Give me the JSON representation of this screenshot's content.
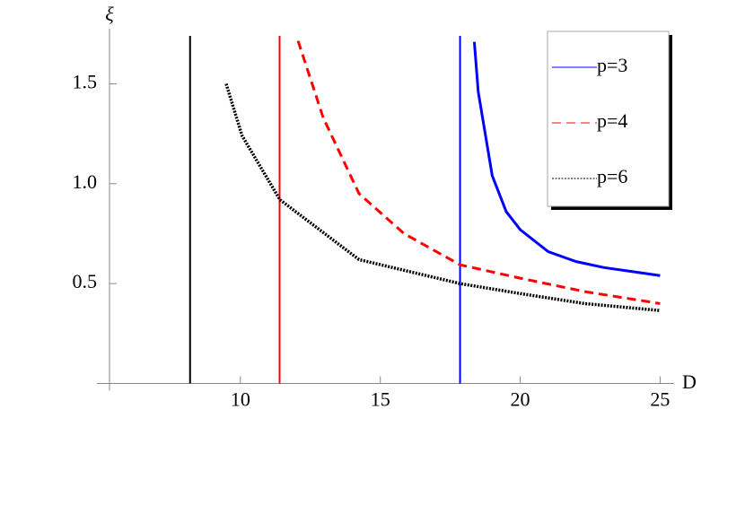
{
  "chart_data": {
    "type": "line",
    "xlabel": "D",
    "ylabel": "ξ",
    "xlim": [
      5,
      25.5
    ],
    "ylim": [
      0,
      1.74
    ],
    "xticks": [
      10,
      15,
      20,
      25
    ],
    "yticks": [
      0.5,
      {
        "value": 1.0,
        "label": "1.0"
      },
      1.5
    ],
    "vlines": [
      {
        "x": 8.2,
        "color": "#000000"
      },
      {
        "x": 11.4,
        "color": "#ff0000"
      },
      {
        "x": 17.85,
        "color": "#0000ff"
      }
    ],
    "series": [
      {
        "name": "p=3",
        "color": "#0000ff",
        "style": "solid",
        "x": [
          18.36,
          18.5,
          19,
          19.5,
          20,
          21,
          22,
          23,
          24,
          25
        ],
        "values": [
          1.71,
          1.46,
          1.04,
          0.86,
          0.77,
          0.66,
          0.61,
          0.58,
          0.56,
          0.54
        ]
      },
      {
        "name": "p=4",
        "color": "#ff0000",
        "style": "dashed",
        "x": [
          12.06,
          12.96,
          14.24,
          15.85,
          17.85,
          20,
          22.3,
          25
        ],
        "values": [
          1.715,
          1.33,
          0.95,
          0.75,
          0.594,
          0.527,
          0.46,
          0.4
        ]
      },
      {
        "name": "p=6",
        "color": "#000000",
        "style": "dotted",
        "x": [
          9.49,
          10.06,
          11.41,
          14.24,
          17.85,
          20,
          22.3,
          25
        ],
        "values": [
          1.5,
          1.24,
          0.92,
          0.62,
          0.5,
          0.45,
          0.4,
          0.365
        ]
      }
    ],
    "legend": "upper right"
  }
}
